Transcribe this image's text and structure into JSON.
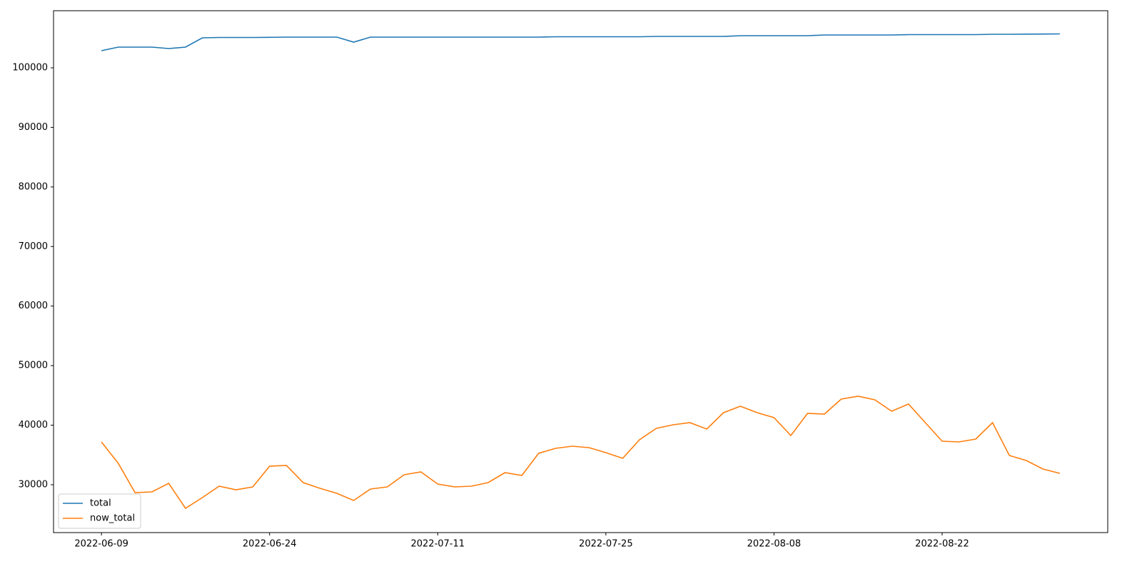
{
  "chart_data": {
    "type": "line",
    "categories": [
      "2022-06-09",
      null,
      null,
      null,
      null,
      null,
      null,
      null,
      null,
      null,
      "2022-06-24",
      null,
      null,
      null,
      null,
      null,
      null,
      null,
      null,
      null,
      "2022-07-11",
      null,
      null,
      null,
      null,
      null,
      null,
      null,
      null,
      null,
      "2022-07-25",
      null,
      null,
      null,
      null,
      null,
      null,
      null,
      null,
      null,
      "2022-08-08",
      null,
      null,
      null,
      null,
      null,
      null,
      null,
      null,
      null,
      "2022-08-22",
      null,
      null,
      null,
      null,
      null,
      null,
      null
    ],
    "series": [
      {
        "name": "total",
        "color": "#1f77b4",
        "values": [
          102877,
          103476,
          103476,
          103476,
          103236,
          103476,
          105034,
          105094,
          105094,
          105094,
          105114,
          105154,
          105154,
          105154,
          105154,
          104315,
          105154,
          105154,
          105154,
          105154,
          105154,
          105154,
          105154,
          105154,
          105154,
          105154,
          105154,
          105214,
          105214,
          105214,
          105214,
          105214,
          105214,
          105274,
          105274,
          105274,
          105274,
          105274,
          105394,
          105394,
          105394,
          105394,
          105394,
          105514,
          105514,
          105514,
          105514,
          105514,
          105574,
          105574,
          105574,
          105574,
          105574,
          105634,
          105634,
          105654,
          105674,
          105694
        ]
      },
      {
        "name": "now_total",
        "color": "#ff7f0e",
        "values": [
          37192,
          33596,
          28682,
          28801,
          30240,
          26045,
          27843,
          29760,
          29161,
          29640,
          33116,
          33236,
          30360,
          29401,
          28562,
          27363,
          29281,
          29640,
          31678,
          32158,
          30120,
          29640,
          29760,
          30360,
          32038,
          31558,
          35274,
          36113,
          36473,
          36233,
          35394,
          34435,
          37551,
          39469,
          40068,
          40428,
          39349,
          42106,
          43185,
          42106,
          41267,
          38270,
          41986,
          41866,
          44383,
          44863,
          44263,
          42346,
          43544,
          40428,
          37312,
          37192,
          37671,
          40428,
          34914,
          34075,
          32637,
          31918
        ]
      }
    ],
    "ylim": [
      21970,
      109590
    ],
    "yticks": [
      30000,
      40000,
      50000,
      60000,
      70000,
      80000,
      90000,
      100000
    ],
    "legend": "lower left"
  }
}
